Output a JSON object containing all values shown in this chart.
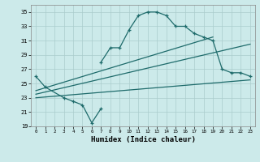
{
  "xlabel": "Humidex (Indice chaleur)",
  "bg_color": "#cceaea",
  "line_color": "#1e6b6b",
  "grid_color": "#aacccc",
  "xlim": [
    -0.5,
    23.5
  ],
  "ylim": [
    19,
    36
  ],
  "yticks": [
    19,
    21,
    23,
    25,
    27,
    29,
    31,
    33,
    35
  ],
  "xticks": [
    0,
    1,
    2,
    3,
    4,
    5,
    6,
    7,
    8,
    9,
    10,
    11,
    12,
    13,
    14,
    15,
    16,
    17,
    18,
    19,
    20,
    21,
    22,
    23
  ],
  "series": [
    {
      "x": [
        0,
        1,
        3,
        4,
        5,
        6,
        7
      ],
      "y": [
        26,
        24.5,
        23,
        22.5,
        22,
        19.5,
        21.5
      ],
      "marker": true
    },
    {
      "x": [
        7,
        8,
        9,
        10,
        11,
        12,
        13,
        14,
        15,
        16,
        17,
        18,
        19,
        20,
        21,
        22,
        23
      ],
      "y": [
        28,
        30,
        30,
        32.5,
        34.5,
        35,
        35,
        34.5,
        33,
        33,
        32,
        31.5,
        31,
        27,
        26.5,
        26.5,
        26
      ],
      "marker": true
    },
    {
      "x": [
        0,
        19
      ],
      "y": [
        24,
        31.5
      ],
      "marker": false
    },
    {
      "x": [
        0,
        23
      ],
      "y": [
        23.5,
        30.5
      ],
      "marker": false
    },
    {
      "x": [
        0,
        23
      ],
      "y": [
        23,
        25.5
      ],
      "marker": false
    }
  ]
}
